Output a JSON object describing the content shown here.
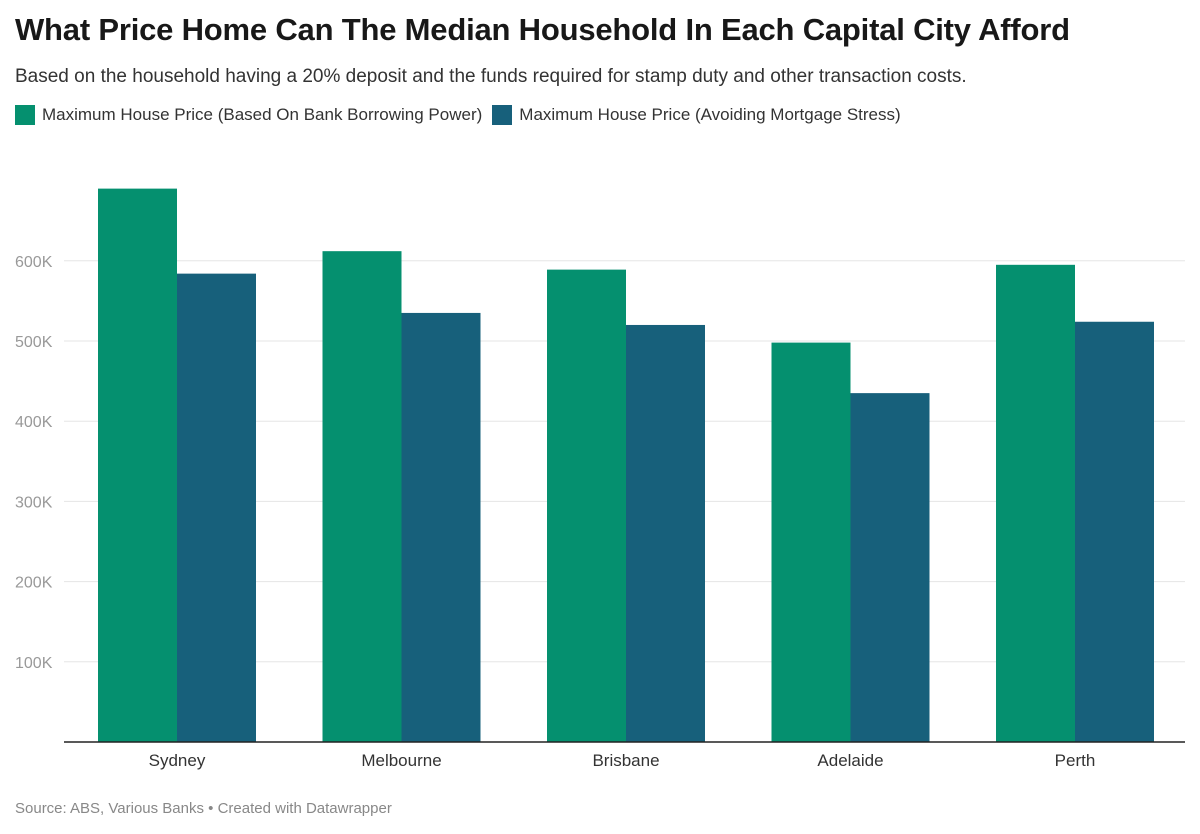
{
  "title": "What Price Home Can The Median Household In Each Capital City Afford",
  "subtitle": "Based on the household having a 20% deposit and the funds required for stamp duty and other transaction costs.",
  "source": "Source: ABS, Various Banks • Created with Datawrapper",
  "colors": {
    "series1": "#05906f",
    "series2": "#17607b",
    "grid": "#e5e5e5",
    "axis": "#222222"
  },
  "chart_data": {
    "type": "bar",
    "categories": [
      "Sydney",
      "Melbourne",
      "Brisbane",
      "Adelaide",
      "Perth"
    ],
    "series": [
      {
        "name": "Maximum House Price (Based On Bank Borrowing Power)",
        "values": [
          690000,
          612000,
          589000,
          498000,
          595000
        ]
      },
      {
        "name": "Maximum House Price (Avoiding Mortgage Stress)",
        "values": [
          584000,
          535000,
          520000,
          435000,
          524000
        ]
      }
    ],
    "y_ticks": [
      100000,
      200000,
      300000,
      400000,
      500000,
      600000
    ],
    "y_tick_labels": [
      "100K",
      "200K",
      "300K",
      "400K",
      "500K",
      "600K"
    ],
    "ylim": [
      0,
      700000
    ],
    "grid": true,
    "legend_position": "top-left"
  }
}
